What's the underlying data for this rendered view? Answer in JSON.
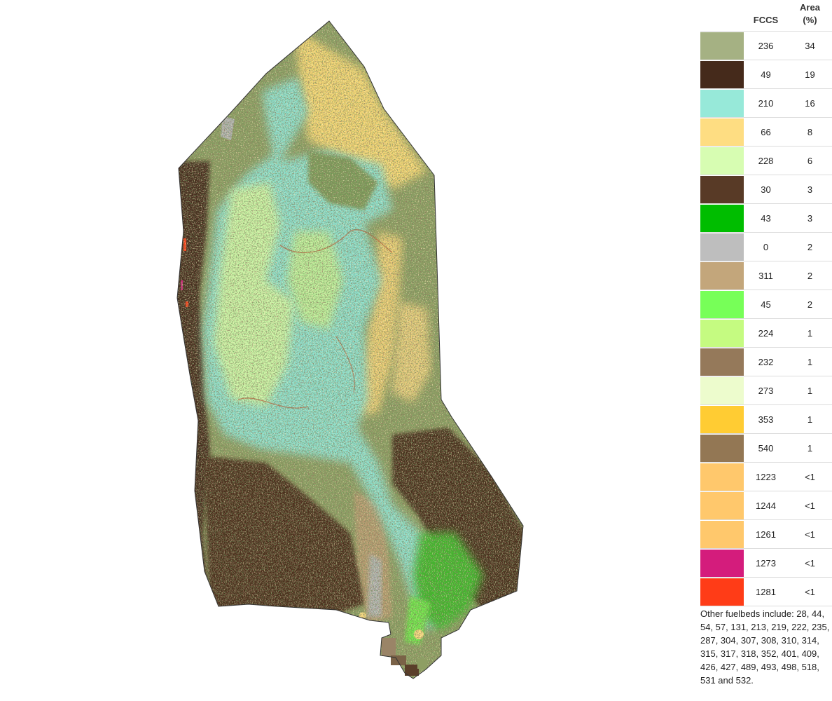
{
  "legend": {
    "header_fccs": "FCCS",
    "header_area_line1": "Area",
    "header_area_line2": "(%)",
    "rows": [
      {
        "fccs": "236",
        "area": "34",
        "color": "#a5b183"
      },
      {
        "fccs": "49",
        "area": "19",
        "color": "#452a1b"
      },
      {
        "fccs": "210",
        "area": "16",
        "color": "#97e9d9"
      },
      {
        "fccs": "66",
        "area": "8",
        "color": "#fedd82"
      },
      {
        "fccs": "228",
        "area": "6",
        "color": "#d7fdb2"
      },
      {
        "fccs": "30",
        "area": "3",
        "color": "#583a26"
      },
      {
        "fccs": "43",
        "area": "3",
        "color": "#00bd00"
      },
      {
        "fccs": "0",
        "area": "2",
        "color": "#bebebe"
      },
      {
        "fccs": "311",
        "area": "2",
        "color": "#c3a67b"
      },
      {
        "fccs": "45",
        "area": "2",
        "color": "#77ff58"
      },
      {
        "fccs": "224",
        "area": "1",
        "color": "#c5fb81"
      },
      {
        "fccs": "232",
        "area": "1",
        "color": "#95795a"
      },
      {
        "fccs": "273",
        "area": "1",
        "color": "#edfccd"
      },
      {
        "fccs": "353",
        "area": "1",
        "color": "#ffcc33"
      },
      {
        "fccs": "540",
        "area": "1",
        "color": "#937754"
      },
      {
        "fccs": "1223",
        "area": "<1",
        "color": "#ffc86c"
      },
      {
        "fccs": "1244",
        "area": "<1",
        "color": "#ffc86c"
      },
      {
        "fccs": "1261",
        "area": "<1",
        "color": "#ffc86c"
      },
      {
        "fccs": "1273",
        "area": "<1",
        "color": "#d41c7c"
      },
      {
        "fccs": "1281",
        "area": "<1",
        "color": "#ff3c17"
      }
    ],
    "note": "Other fuelbeds include: 28, 44, 54, 57, 131, 213, 219, 222, 235, 287, 304, 307, 308, 310, 314, 315, 317, 318, 352, 401, 409, 426, 427, 489, 493, 498, 518, 531 and 532."
  }
}
